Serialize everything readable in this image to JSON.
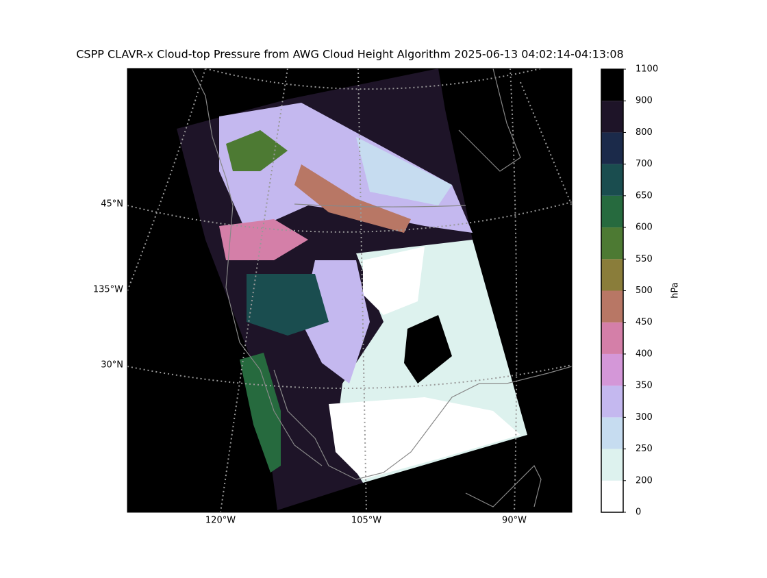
{
  "map": {
    "title": "CSPP CLAVR-x Cloud-top Pressure from AWG Cloud Height Algorithm 2025-06-13 04:02:14-04:13:08",
    "latitude_labels": [
      "45°N",
      "135°W",
      "30°N"
    ],
    "longitude_labels": [
      "120°W",
      "105°W",
      "90°W"
    ],
    "colorbar": {
      "label": "hPa",
      "bounds": [
        0,
        200,
        250,
        300,
        350,
        400,
        450,
        500,
        550,
        600,
        650,
        700,
        800,
        900,
        1100
      ],
      "colors": [
        "#ffffff",
        "#ddf2ee",
        "#c6dcf0",
        "#c4b8ef",
        "#d497d8",
        "#d47fa8",
        "#b87765",
        "#8a7d3a",
        "#4d7a33",
        "#266a3e",
        "#1a4d4f",
        "#1b2a4a",
        "#1e1428",
        "#000000"
      ]
    }
  }
}
